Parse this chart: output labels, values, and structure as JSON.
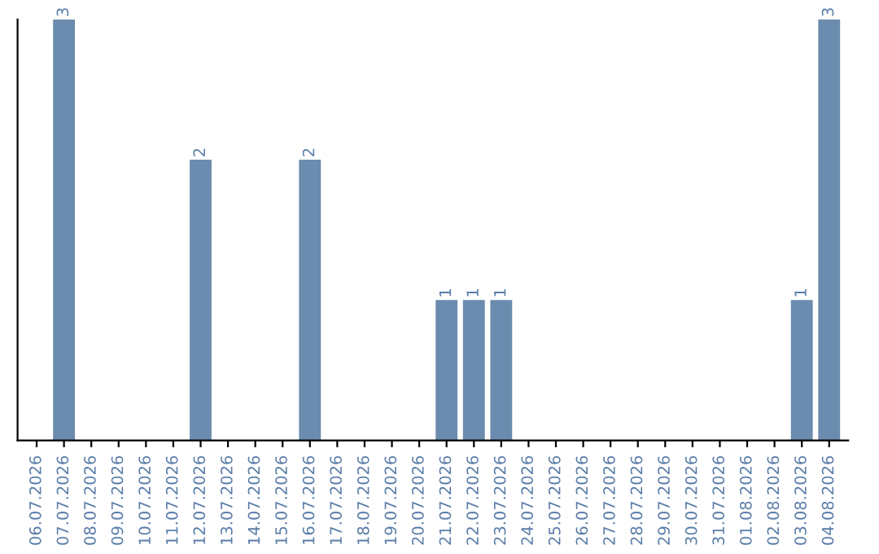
{
  "chart_data": {
    "type": "bar",
    "categories": [
      "06.07.2026",
      "07.07.2026",
      "08.07.2026",
      "09.07.2026",
      "10.07.2026",
      "11.07.2026",
      "12.07.2026",
      "13.07.2026",
      "14.07.2026",
      "15.07.2026",
      "16.07.2026",
      "17.07.2026",
      "18.07.2026",
      "19.07.2026",
      "20.07.2026",
      "21.07.2026",
      "22.07.2026",
      "23.07.2026",
      "24.07.2026",
      "25.07.2026",
      "26.07.2026",
      "27.07.2026",
      "28.07.2026",
      "29.07.2026",
      "30.07.2026",
      "31.07.2026",
      "01.08.2026",
      "02.08.2026",
      "03.08.2026",
      "04.08.2026"
    ],
    "values": [
      0,
      3,
      0,
      0,
      0,
      0,
      2,
      0,
      0,
      0,
      2,
      0,
      0,
      0,
      0,
      1,
      1,
      1,
      0,
      0,
      0,
      0,
      0,
      0,
      0,
      0,
      0,
      0,
      1,
      3
    ],
    "value_labels": [
      null,
      "3",
      null,
      null,
      null,
      null,
      "2",
      null,
      null,
      null,
      "2",
      null,
      null,
      null,
      null,
      "1",
      "1",
      "1",
      null,
      null,
      null,
      null,
      null,
      null,
      null,
      null,
      null,
      null,
      "1",
      "3"
    ],
    "color": "#6b8cae",
    "tick_labels": "x",
    "grid": false,
    "legend": false
  }
}
